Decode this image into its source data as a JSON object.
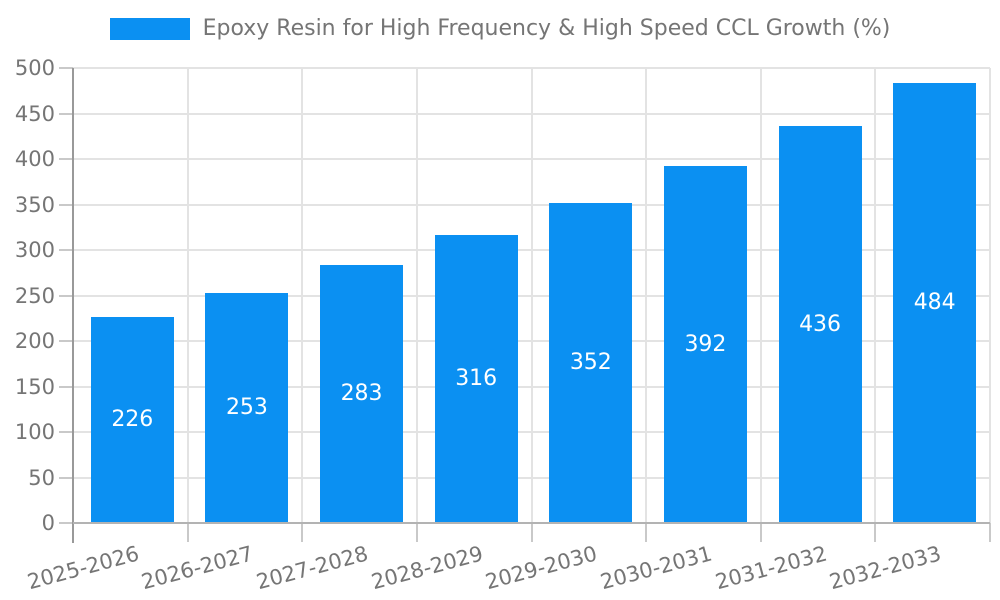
{
  "legend": {
    "label": "Epoxy Resin for High Frequency & High Speed CCL Growth (%)"
  },
  "chart_data": {
    "type": "bar",
    "title": "",
    "xlabel": "",
    "ylabel": "",
    "categories": [
      "2025-2026",
      "2026-2027",
      "2027-2028",
      "2028-2029",
      "2029-2030",
      "2030-2031",
      "2031-2032",
      "2032-2033"
    ],
    "values": [
      226,
      253,
      283,
      316,
      352,
      392,
      436,
      484
    ],
    "series_name": "Epoxy Resin for High Frequency & High Speed CCL Growth (%)",
    "value_labels": [
      "226",
      "253",
      "283",
      "316",
      "352",
      "392",
      "436",
      "484"
    ],
    "value_label_position": "inside-center",
    "ylim": [
      0,
      500
    ],
    "yticks": [
      0,
      50,
      100,
      150,
      200,
      250,
      300,
      350,
      400,
      450,
      500
    ],
    "grid": true,
    "legend_position": "top",
    "x_label_rotation_deg": -15
  },
  "colors": {
    "bar": "#0b90f2",
    "grid": "#e3e3e3",
    "axis": "#999999",
    "baseline": "#b3b3b3",
    "tick": "#c9c9c9",
    "text": "#757575",
    "value_text": "#ffffff",
    "background": "#ffffff"
  }
}
